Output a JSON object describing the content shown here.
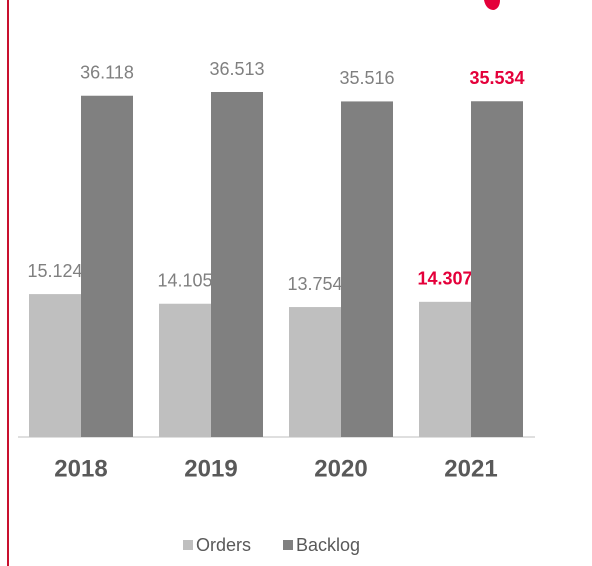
{
  "chart_data": {
    "type": "bar",
    "categories": [
      "2018",
      "2019",
      "2020",
      "2021"
    ],
    "series": [
      {
        "name": "Orders",
        "color": "#bfbfbf",
        "values": [
          15.124,
          14.105,
          13.754,
          14.307
        ],
        "label_colors": [
          "#808080",
          "#808080",
          "#808080",
          "#e4003a"
        ]
      },
      {
        "name": "Backlog",
        "color": "#808080",
        "values": [
          36.118,
          36.513,
          35.516,
          35.534
        ],
        "label_colors": [
          "#808080",
          "#808080",
          "#808080",
          "#e4003a"
        ]
      }
    ],
    "legend": "bottom"
  }
}
